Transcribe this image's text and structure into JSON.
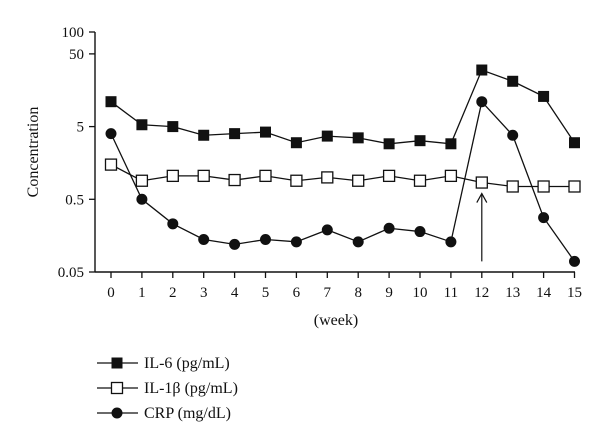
{
  "chart_data": {
    "type": "line",
    "xlabel": "(week)",
    "ylabel": "Concentration",
    "yscale": "log",
    "ylim": [
      0.05,
      100
    ],
    "yticks": [
      0.05,
      0.5,
      5,
      50,
      100
    ],
    "ytick_labels": [
      "0.05",
      "0.5",
      "5",
      "50",
      "100"
    ],
    "x": [
      0,
      1,
      2,
      3,
      4,
      5,
      6,
      7,
      8,
      9,
      10,
      11,
      12,
      13,
      14,
      15
    ],
    "xtick_labels": [
      "0",
      "1",
      "2",
      "3",
      "4",
      "5",
      "6",
      "7",
      "8",
      "9",
      "10",
      "11",
      "12",
      "13",
      "14",
      "15"
    ],
    "grid": false,
    "legend_position": "below-left",
    "series": [
      {
        "name": "IL-6 (pg/mL)",
        "marker": "filled-square",
        "color": "#111111",
        "values": [
          11,
          5.3,
          5.0,
          3.8,
          4.0,
          4.2,
          3.0,
          3.7,
          3.5,
          2.9,
          3.2,
          2.9,
          30,
          21,
          13,
          3.0
        ]
      },
      {
        "name": "IL-1β (pg/mL)",
        "marker": "open-square",
        "color": "#111111",
        "values": [
          1.5,
          0.9,
          1.05,
          1.05,
          0.92,
          1.05,
          0.9,
          1.0,
          0.9,
          1.05,
          0.9,
          1.05,
          0.85,
          0.75,
          0.75,
          0.75
        ]
      },
      {
        "name": "CRP (mg/dL)",
        "marker": "filled-circle",
        "color": "#111111",
        "values": [
          4.0,
          0.5,
          0.23,
          0.14,
          0.12,
          0.14,
          0.13,
          0.19,
          0.13,
          0.2,
          0.18,
          0.13,
          11,
          3.8,
          0.28,
          0.07
        ]
      }
    ],
    "annotations": [
      {
        "type": "arrow",
        "x": 12,
        "from_y": 0.07,
        "to_y": 0.6
      }
    ]
  },
  "legend": {
    "items": [
      "IL-6 (pg/mL)",
      "IL-1β (pg/mL)",
      "CRP (mg/dL)"
    ]
  }
}
